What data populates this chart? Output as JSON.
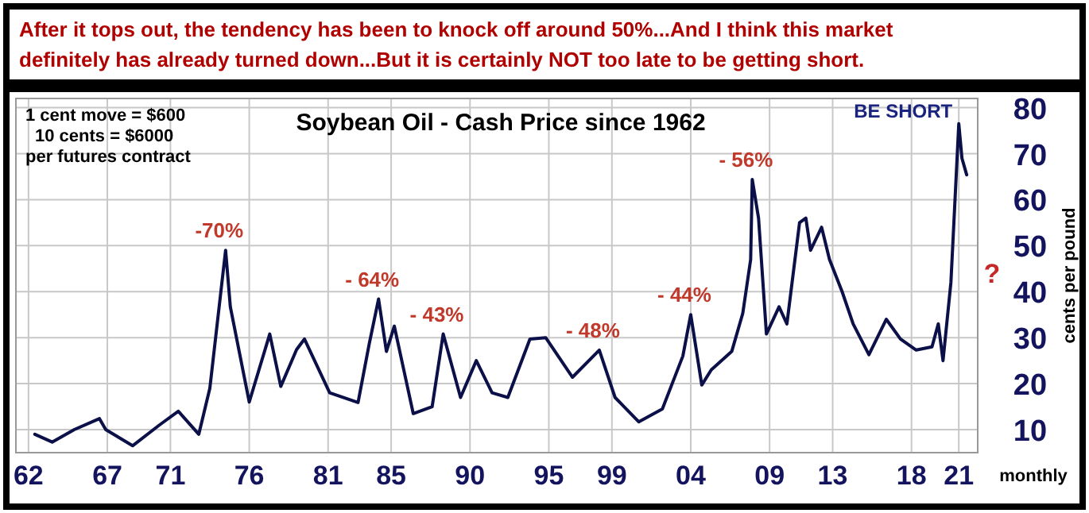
{
  "chart_data": {
    "type": "line",
    "title": "Soybean Oil - Cash Price since 1962",
    "subtitle": "After it tops out, the tendency has been to knock off around 50%...And I think this market definitely has already turned down...But it is certainly NOT too late to be getting short.",
    "xlabel": "monthly",
    "ylabel": "cents per pound",
    "x": [
      1962.4,
      1963.5,
      1964.9,
      1966.5,
      1966.9,
      1968.6,
      1970.3,
      1971.5,
      1972.8,
      1973.5,
      1974.5,
      1974.8,
      1976.0,
      1977.3,
      1978.0,
      1979.0,
      1979.5,
      1981.1,
      1982.9,
      1983.6,
      1984.2,
      1984.7,
      1985.2,
      1986.4,
      1987.6,
      1988.3,
      1989.4,
      1990.4,
      1991.4,
      1992.4,
      1993.8,
      1994.8,
      1996.5,
      1998.2,
      1999.2,
      2000.7,
      2002.2,
      2003.5,
      2004.0,
      2004.7,
      2005.3,
      2006.6,
      2007.3,
      2007.8,
      2007.9,
      2008.3,
      2008.8,
      2009.6,
      2010.1,
      2010.9,
      2011.3,
      2011.6,
      2012.3,
      2012.8,
      2013.6,
      2014.3,
      2015.3,
      2016.4,
      2017.3,
      2018.3,
      2019.3,
      2019.7,
      2020.0,
      2020.5,
      2021.0,
      2021.2,
      2021.5
    ],
    "series": [
      {
        "color": "#0b1048",
        "values": [
          9,
          7.3,
          10,
          12.4,
          10,
          6.5,
          11,
          14,
          9,
          19,
          49,
          36.7,
          16,
          30.8,
          19.4,
          27.4,
          29.7,
          18,
          15.9,
          28.5,
          38.4,
          27,
          32.5,
          13.5,
          15,
          30.8,
          17,
          25,
          18,
          17,
          29.7,
          30,
          21.4,
          27.3,
          17,
          11.7,
          14.5,
          26,
          35,
          19.7,
          23,
          27,
          35.3,
          47,
          64.4,
          56,
          30.8,
          36.7,
          33,
          55,
          56,
          49,
          54,
          47,
          40,
          33,
          26.3,
          34,
          29.7,
          27.3,
          28,
          33,
          25,
          42,
          76.5,
          69,
          65.4
        ]
      }
    ],
    "xlim": [
      1961.2,
      2022.2
    ],
    "ylim": [
      5,
      82
    ],
    "xticks": [
      {
        "value": 1962,
        "label": "62"
      },
      {
        "value": 1967,
        "label": "67"
      },
      {
        "value": 1971,
        "label": "71"
      },
      {
        "value": 1976,
        "label": "76"
      },
      {
        "value": 1981,
        "label": "81"
      },
      {
        "value": 1985,
        "label": "85"
      },
      {
        "value": 1990,
        "label": "90"
      },
      {
        "value": 1995,
        "label": "95"
      },
      {
        "value": 1999,
        "label": "99"
      },
      {
        "value": 2004,
        "label": "04"
      },
      {
        "value": 2009,
        "label": "09"
      },
      {
        "value": 2013,
        "label": "13"
      },
      {
        "value": 2018,
        "label": "18"
      },
      {
        "value": 2021,
        "label": "21"
      }
    ],
    "yticks": [
      10,
      20,
      30,
      40,
      50,
      60,
      70,
      80
    ],
    "grid": true,
    "annotations": [
      "1 cent move = $600",
      "10 cents = $6000",
      "per futures contract",
      "?",
      {
        "text": "-70%",
        "x": 1974.5,
        "y": 49
      },
      {
        "text": "- 64%",
        "x": 1984.2,
        "y": 38.4
      },
      {
        "text": "- 43%",
        "x": 1988.3,
        "y": 30.8
      },
      {
        "text": "- 48%",
        "x": 1998.2,
        "y": 27.3
      },
      {
        "text": "- 44%",
        "x": 2004.0,
        "y": 35
      },
      {
        "text": "- 56%",
        "x": 2007.9,
        "y": 64.4
      },
      {
        "text": "BE SHORT",
        "x": 2021.0,
        "y": 76.5
      }
    ]
  }
}
